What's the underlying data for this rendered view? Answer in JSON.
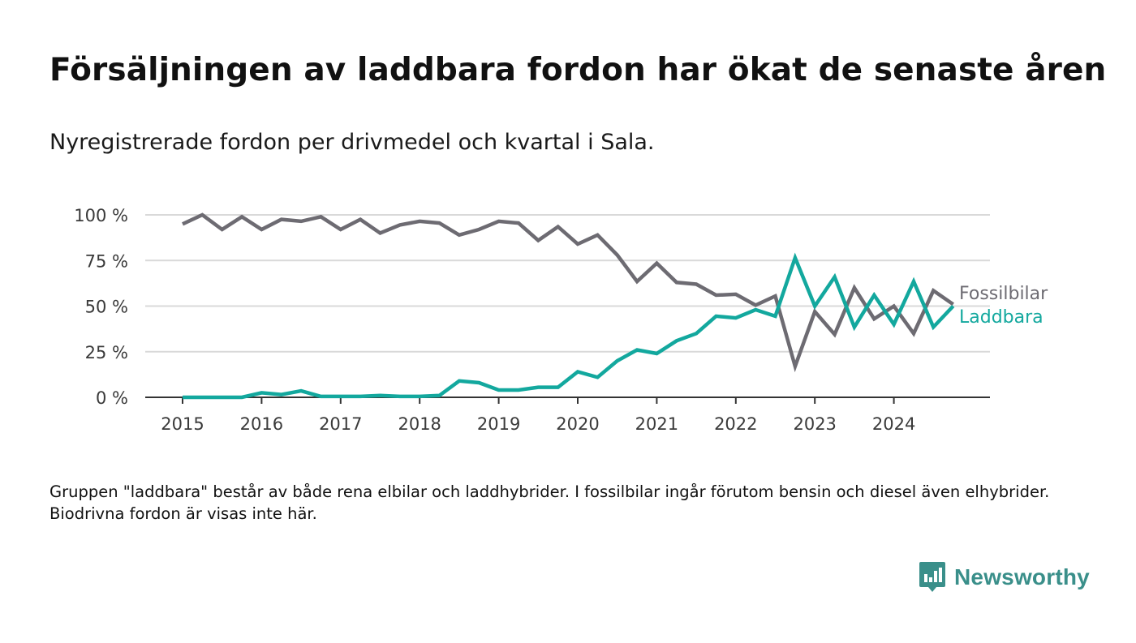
{
  "title": "Försäljningen av laddbara fordon har ökat de senaste åren",
  "subtitle": "Nyregistrerade fordon per drivmedel och kvartal i Sala.",
  "note": "Gruppen \"laddbara\" består av både rena elbilar och laddhybrider. I fossilbilar ingår förutom bensin och diesel även elhybrider. Biodrivna fordon är visas inte här.",
  "brand": {
    "name": "Newsworthy",
    "icon": "newsworthy-logo-icon",
    "color": "#3a8f8a"
  },
  "chart_data": {
    "type": "line",
    "x_unit": "quarter",
    "x": [
      "2015-Q1",
      "2015-Q2",
      "2015-Q3",
      "2015-Q4",
      "2016-Q1",
      "2016-Q2",
      "2016-Q3",
      "2016-Q4",
      "2017-Q1",
      "2017-Q2",
      "2017-Q3",
      "2017-Q4",
      "2018-Q1",
      "2018-Q2",
      "2018-Q3",
      "2018-Q4",
      "2019-Q1",
      "2019-Q2",
      "2019-Q3",
      "2019-Q4",
      "2020-Q1",
      "2020-Q2",
      "2020-Q3",
      "2020-Q4",
      "2021-Q1",
      "2021-Q2",
      "2021-Q3",
      "2021-Q4",
      "2022-Q1",
      "2022-Q2",
      "2022-Q3",
      "2022-Q4",
      "2023-Q1",
      "2023-Q2",
      "2023-Q3",
      "2023-Q4",
      "2024-Q1",
      "2024-Q2",
      "2024-Q3",
      "2024-Q4"
    ],
    "xticks": [
      "2015",
      "2016",
      "2017",
      "2018",
      "2019",
      "2020",
      "2021",
      "2022",
      "2023",
      "2024"
    ],
    "yticks": [
      0,
      25,
      50,
      75,
      100
    ],
    "ytick_labels": [
      "0 %",
      "25 %",
      "50 %",
      "75 %",
      "100 %"
    ],
    "ylim": [
      0,
      100
    ],
    "grid": true,
    "series": [
      {
        "name": "Fossilbilar",
        "color": "#6d6b72",
        "values": [
          95,
          100,
          92,
          99,
          92,
          97.5,
          96.5,
          99,
          92,
          97.5,
          90,
          94.5,
          96.5,
          95.5,
          89,
          92,
          96.5,
          95.5,
          86,
          93.5,
          84,
          89,
          78,
          63.5,
          73.5,
          63,
          62,
          56,
          56.5,
          50.5,
          55.5,
          17,
          47,
          34.5,
          60,
          43,
          50,
          35,
          58.5,
          51
        ]
      },
      {
        "name": "Laddbara",
        "color": "#13a89e",
        "values": [
          0,
          0,
          0,
          0,
          2.5,
          1.5,
          3.5,
          0.5,
          0.5,
          0.5,
          1,
          0.5,
          0.5,
          1,
          9,
          8,
          4,
          4,
          5.5,
          5.5,
          14,
          11,
          20,
          26,
          24,
          31,
          35,
          44.5,
          43.5,
          48,
          44.5,
          76.5,
          50,
          66,
          38.5,
          56,
          40,
          63.5,
          38.5,
          50
        ]
      }
    ]
  }
}
